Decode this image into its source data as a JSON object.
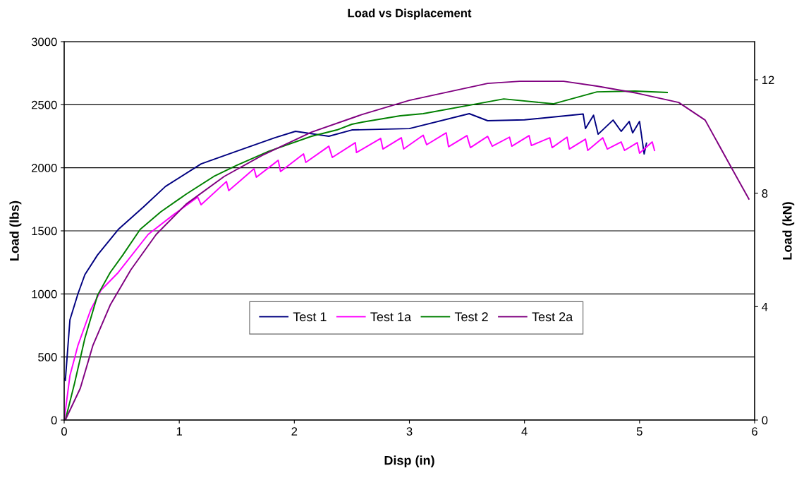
{
  "chart_data": {
    "type": "line",
    "title": "Load vs Displacement",
    "xlabel": "Disp (in)",
    "ylabel": "Load (lbs)",
    "y2label": "Load (kN)",
    "xlim": [
      0,
      6
    ],
    "xticks": [
      0,
      1,
      2,
      3,
      4,
      5,
      6
    ],
    "ylim": [
      0,
      3000
    ],
    "yticks": [
      0,
      500,
      1000,
      1500,
      2000,
      2500,
      3000
    ],
    "y2lim": [
      0,
      13.345
    ],
    "y2ticks": [
      0,
      4,
      8,
      12
    ],
    "grid": "y",
    "legend": "center",
    "marker": "none",
    "line_style": "solid",
    "series": [
      {
        "name": "Test 1",
        "color": "#000080",
        "x": [
          0,
          0.01,
          0.05,
          0.12,
          0.18,
          0.29,
          0.47,
          0.69,
          0.88,
          1.19,
          1.5,
          1.83,
          2.01,
          2.3,
          2.5,
          3.0,
          3.52,
          3.68,
          4.0,
          4.51,
          4.53,
          4.6,
          4.64,
          4.77,
          4.84,
          4.91,
          4.94,
          5.0,
          5.04,
          5.06
        ],
        "values": [
          330,
          313,
          795,
          1002,
          1153,
          1309,
          1511,
          1690,
          1852,
          2031,
          2132,
          2238,
          2289,
          2250,
          2300,
          2311,
          2429,
          2373,
          2380,
          2426,
          2311,
          2417,
          2266,
          2378,
          2289,
          2367,
          2277,
          2367,
          2110,
          2195
        ]
      },
      {
        "name": "Test 1a",
        "color": "#ff00ff",
        "x": [
          0,
          0.05,
          0.12,
          0.23,
          0.32,
          0.47,
          0.73,
          0.95,
          1.16,
          1.19,
          1.41,
          1.43,
          1.65,
          1.67,
          1.86,
          1.88,
          2.08,
          2.1,
          2.3,
          2.33,
          2.53,
          2.54,
          2.75,
          2.77,
          2.93,
          2.95,
          3.12,
          3.15,
          3.32,
          3.34,
          3.5,
          3.53,
          3.68,
          3.72,
          3.87,
          3.89,
          4.04,
          4.06,
          4.22,
          4.24,
          4.37,
          4.39,
          4.53,
          4.55,
          4.68,
          4.72,
          4.84,
          4.87,
          4.98,
          5.0,
          5.11,
          5.13
        ],
        "values": [
          0,
          352,
          593,
          873,
          1030,
          1170,
          1472,
          1628,
          1768,
          1707,
          1891,
          1819,
          1992,
          1925,
          2059,
          1970,
          2110,
          2043,
          2171,
          2082,
          2199,
          2121,
          2233,
          2149,
          2238,
          2149,
          2258,
          2183,
          2277,
          2167,
          2255,
          2160,
          2249,
          2171,
          2243,
          2171,
          2255,
          2177,
          2238,
          2160,
          2243,
          2149,
          2227,
          2138,
          2238,
          2149,
          2205,
          2138,
          2199,
          2116,
          2205,
          2138
        ]
      },
      {
        "name": "Test 2",
        "color": "#008000",
        "x": [
          0.01,
          0.09,
          0.18,
          0.29,
          0.4,
          0.51,
          0.66,
          0.84,
          1.06,
          1.3,
          1.5,
          1.78,
          2.15,
          2.37,
          2.5,
          2.59,
          2.92,
          3.12,
          3.82,
          4.25,
          4.63,
          4.96,
          5.24
        ],
        "values": [
          0,
          291,
          649,
          990,
          1170,
          1309,
          1511,
          1651,
          1791,
          1931,
          2020,
          2132,
          2250,
          2300,
          2345,
          2362,
          2412,
          2429,
          2546,
          2507,
          2602,
          2608,
          2597
        ]
      },
      {
        "name": "Test 2a",
        "color": "#800080",
        "x": [
          0.01,
          0.14,
          0.25,
          0.4,
          0.58,
          0.8,
          1.06,
          1.39,
          1.72,
          2.15,
          2.59,
          3.0,
          3.68,
          3.96,
          4.34,
          4.63,
          4.98,
          5.34,
          5.57,
          5.8,
          5.95
        ],
        "values": [
          0,
          252,
          593,
          912,
          1192,
          1472,
          1712,
          1931,
          2098,
          2283,
          2423,
          2535,
          2669,
          2686,
          2686,
          2647,
          2591,
          2518,
          2378,
          1998,
          1752
        ]
      }
    ]
  }
}
